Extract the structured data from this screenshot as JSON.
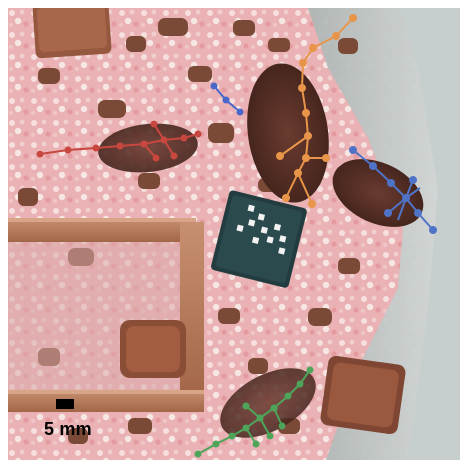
{
  "scale_bar": {
    "label": "5 mm"
  },
  "tracks": [
    {
      "name": "orange-skeleton",
      "color": "#e8954a"
    },
    {
      "name": "blue-skeleton",
      "color": "#4f73c6"
    },
    {
      "name": "red-skeleton",
      "color": "#c8473f"
    },
    {
      "name": "green-skeleton",
      "color": "#4ea55a"
    },
    {
      "name": "blue-small-skeleton",
      "color": "#4a67c9"
    }
  ]
}
